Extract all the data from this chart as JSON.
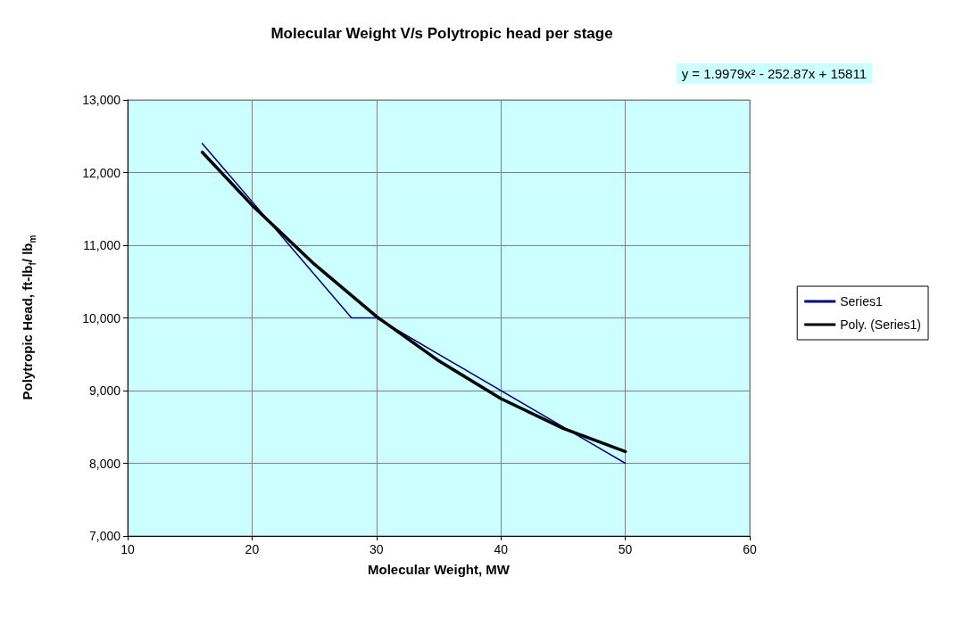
{
  "chart_data": {
    "type": "line",
    "title": "Molecular Weight V/s Polytropic head per stage",
    "xlabel": "Molecular Weight, MW",
    "ylabel": "Polytropic Head, ft-lb$_{f}$/ lb$_{m}$",
    "annotations": [
      "y = 1.9979x² - 252.87x + 15811"
    ],
    "series": [
      {
        "name": "Series1",
        "color": "#000080",
        "x": [
          16,
          28,
          30,
          50
        ],
        "values": [
          12400,
          10000,
          10000,
          8000
        ]
      },
      {
        "name": "Poly. (Series1)",
        "color": "#000000",
        "x": [
          16,
          20,
          25,
          30,
          35,
          40,
          45,
          50
        ],
        "values": [
          12280,
          11550,
          10740,
          10020,
          9410,
          8890,
          8480,
          8160
        ]
      }
    ],
    "xlim": [
      10,
      60
    ],
    "xticks": [
      10,
      20,
      30,
      40,
      50,
      60
    ],
    "ylim": [
      7000,
      13000
    ],
    "yticks": [
      {
        "value": 7000,
        "label": "7,000"
      },
      {
        "value": 8000,
        "label": "8,000"
      },
      {
        "value": 9000,
        "label": "9,000"
      },
      {
        "value": 10000,
        "label": "10,000"
      },
      {
        "value": 11000,
        "label": "11,000"
      },
      {
        "value": 12000,
        "label": "12,000"
      },
      {
        "value": 13000,
        "label": "13,000"
      }
    ],
    "grid": true,
    "legend": "right",
    "marker": "none",
    "line_style": "solid"
  }
}
